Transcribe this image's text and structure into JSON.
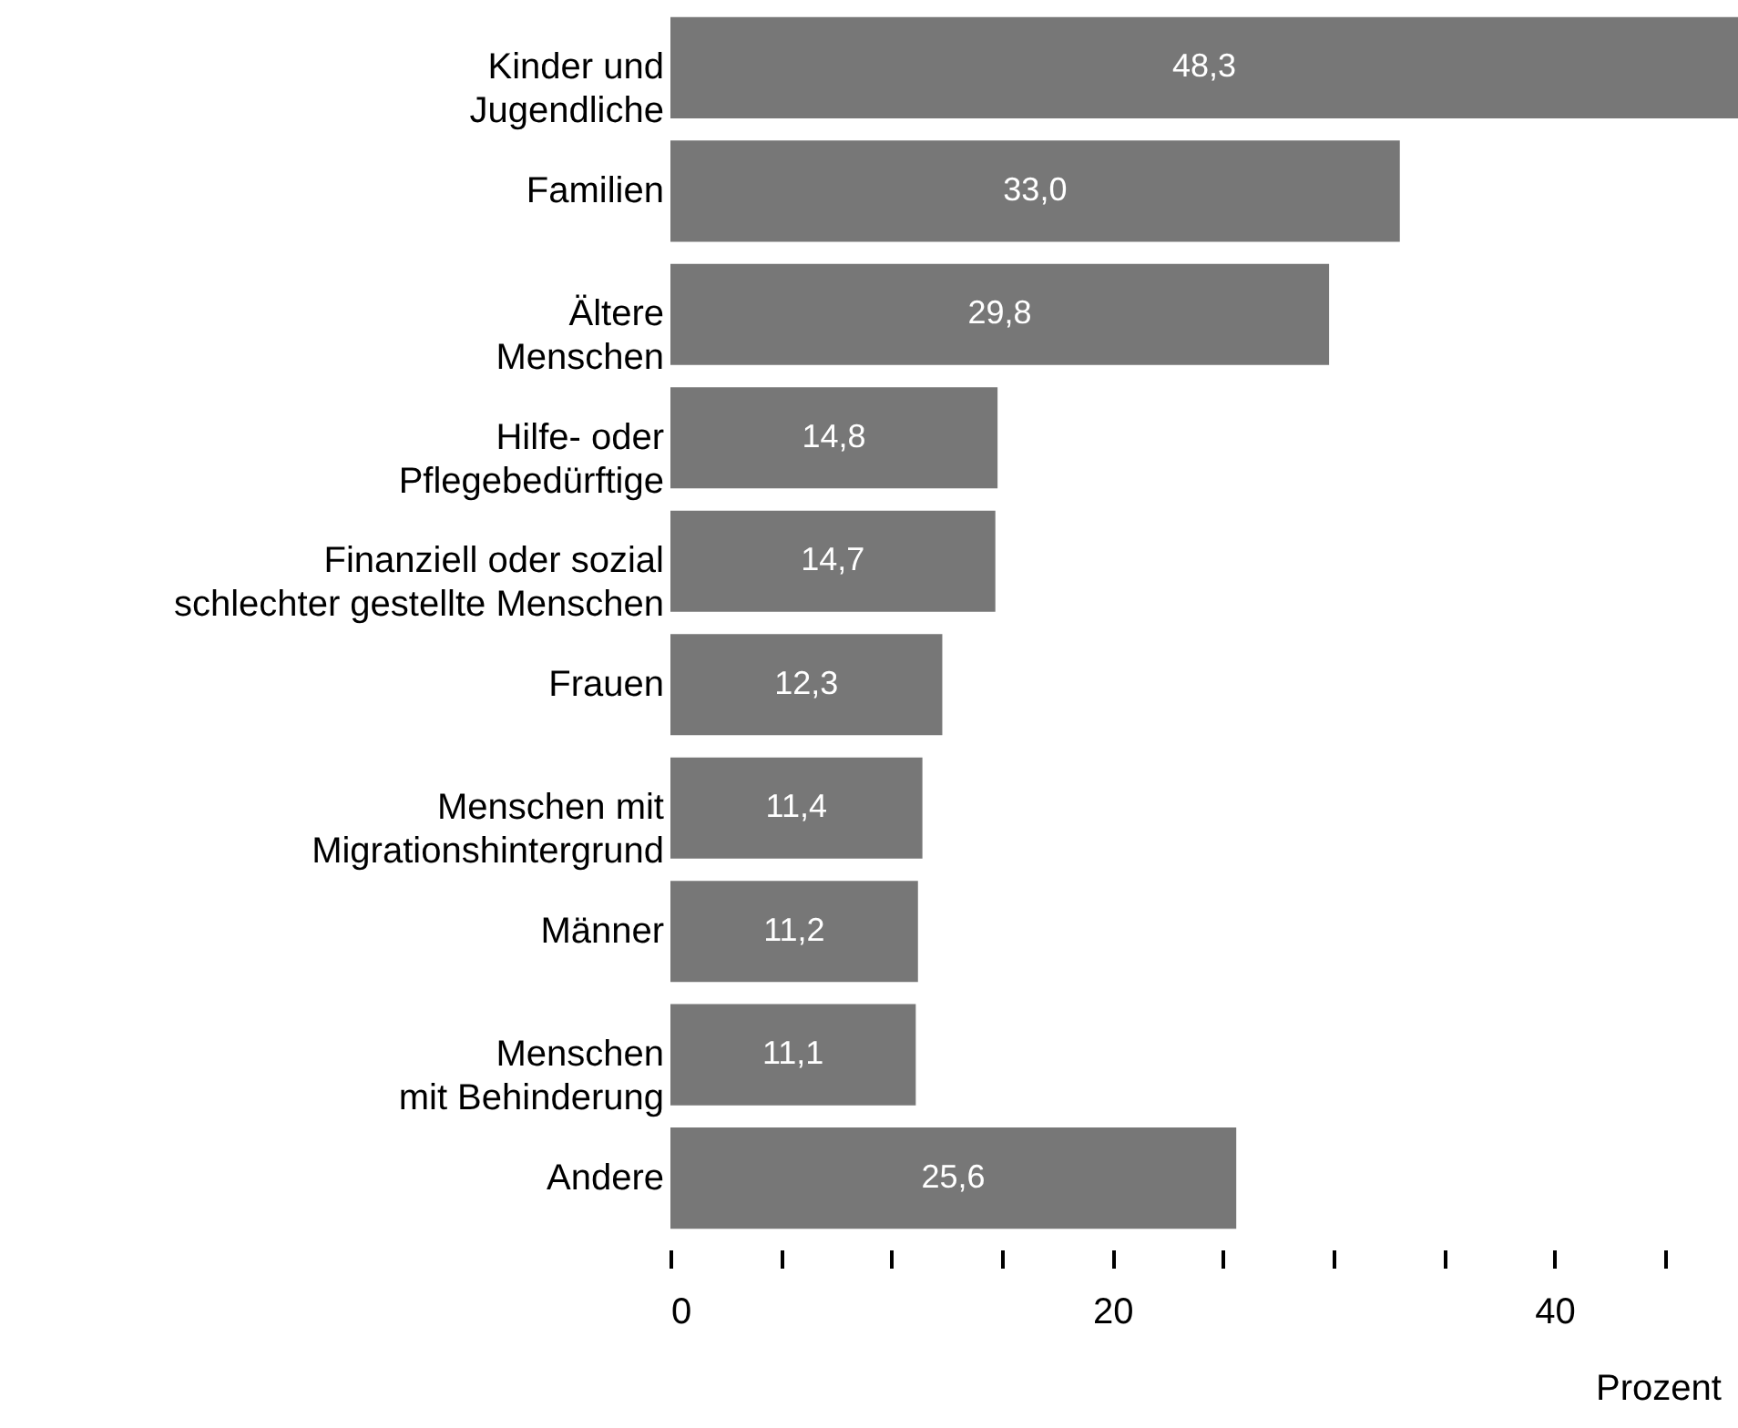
{
  "chart_data": {
    "type": "bar",
    "orientation": "horizontal",
    "xlabel": "Prozent",
    "categories": [
      "Kinder und\nJugendliche",
      "Familien",
      "Ältere\nMenschen",
      "Hilfe- oder\nPflegebedürftige",
      "Finanziell oder sozial\nschlechter gestellte Menschen",
      "Frauen",
      "Menschen mit\nMigrationshintergrund",
      "Männer",
      "Menschen\nmit Behinderung",
      "Andere"
    ],
    "values": [
      48.3,
      33.0,
      29.8,
      14.8,
      14.7,
      12.3,
      11.4,
      11.2,
      11.1,
      25.6
    ],
    "value_labels": [
      "48,3",
      "33,0",
      "29,8",
      "14,8",
      "14,7",
      "12,3",
      "11,4",
      "11,2",
      "11,1",
      "25,6"
    ],
    "color": "#777777",
    "xlim": [
      0,
      48.3
    ],
    "xticks": [
      0,
      {
        "value": 5,
        "label": null
      },
      {
        "value": 10,
        "label": null
      },
      {
        "value": 15,
        "label": null
      },
      20,
      {
        "value": 25,
        "label": null
      },
      {
        "value": 30,
        "label": null
      },
      {
        "value": 35,
        "label": null
      },
      40,
      {
        "value": 45,
        "label": null
      }
    ],
    "grid": false
  }
}
